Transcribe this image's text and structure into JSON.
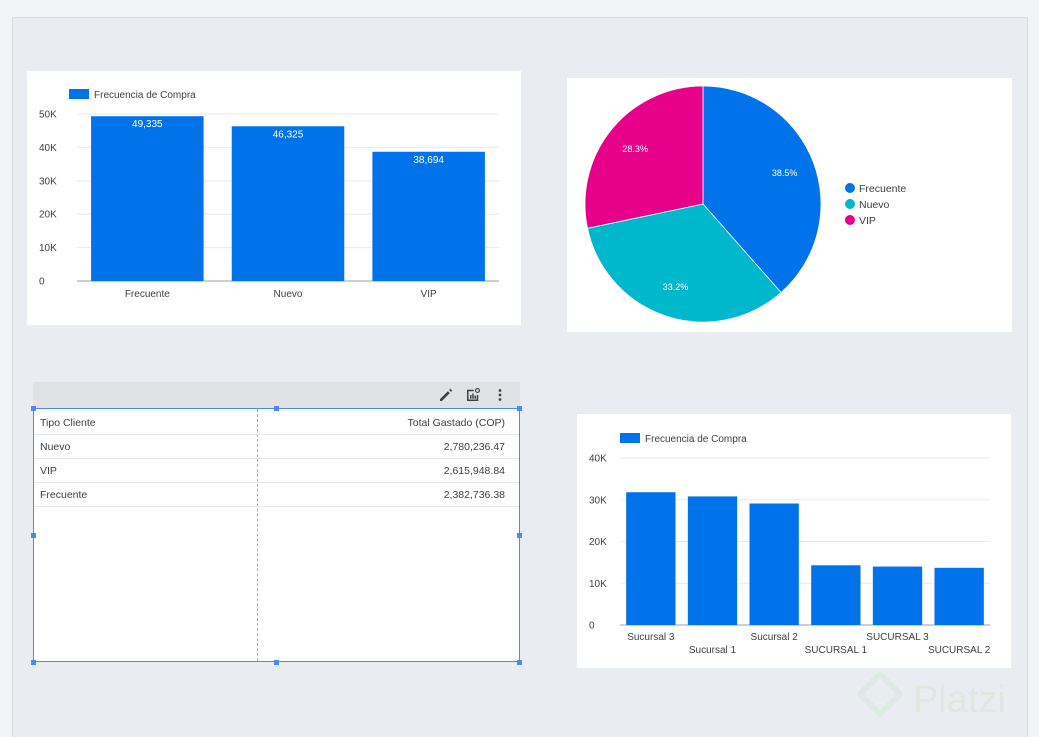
{
  "charts": {
    "bar_tipo": {
      "type": "bar",
      "legend": "Frecuencia de Compra",
      "categories": [
        "Frecuente",
        "Nuevo",
        "VIP"
      ],
      "values": [
        49335,
        46325,
        38694
      ],
      "value_labels": [
        "49,335",
        "46,325",
        "38,694"
      ],
      "yticks": [
        "0",
        "10K",
        "20K",
        "30K",
        "40K",
        "50K"
      ],
      "ylim": [
        0,
        50000
      ],
      "color": "#0073ea"
    },
    "pie_tipo": {
      "type": "pie",
      "labels": [
        "Frecuente",
        "Nuevo",
        "VIP"
      ],
      "values": [
        38.5,
        33.2,
        28.3
      ],
      "percent_labels": [
        "38.5%",
        "33.2%",
        "28.3%"
      ],
      "colors": [
        "#0073ea",
        "#00b8cc",
        "#e6008a"
      ],
      "legend_position": "right"
    },
    "bar_sucursal": {
      "type": "bar",
      "legend": "Frecuencia de Compra",
      "categories": [
        "Sucursal 3",
        "Sucursal 1",
        "Sucursal 2",
        "SUCURSAL 1",
        "SUCURSAL 3",
        "SUCURSAL 2"
      ],
      "values": [
        31800,
        30800,
        29100,
        14300,
        14000,
        13700
      ],
      "yticks": [
        "0",
        "10K",
        "20K",
        "30K",
        "40K"
      ],
      "ylim": [
        0,
        40000
      ],
      "color": "#0073ea"
    }
  },
  "table": {
    "headers": [
      "Tipo Cliente",
      "Total Gastado (COP)"
    ],
    "rows": [
      [
        "Nuevo",
        "2,780,236.47"
      ],
      [
        "VIP",
        "2,615,948.84"
      ],
      [
        "Frecuente",
        "2,382,736.38"
      ]
    ]
  },
  "toolbar": {
    "icons": [
      "edit-icon",
      "chart-settings-icon",
      "more-vert-icon"
    ]
  },
  "watermark": {
    "text": "Platzi"
  }
}
